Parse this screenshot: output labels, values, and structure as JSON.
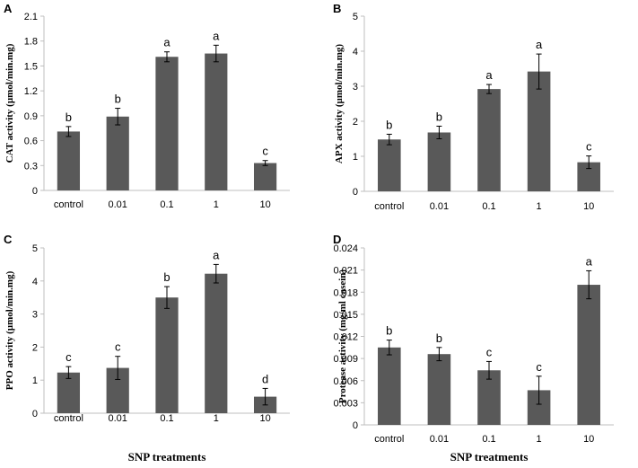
{
  "chart_data": [
    {
      "type": "bar",
      "panel": "A",
      "categories": [
        "control",
        "0.01",
        "0.1",
        "1",
        "10"
      ],
      "values": [
        0.71,
        0.89,
        1.61,
        1.65,
        0.33
      ],
      "errors": [
        0.06,
        0.1,
        0.06,
        0.1,
        0.03
      ],
      "letters": [
        "b",
        "b",
        "a",
        "a",
        "c"
      ],
      "ylabel": "CAT activity (µmol/min.mg)",
      "xlabel": "",
      "ylim": [
        0,
        2.1
      ],
      "yticks": [
        "0",
        "0.3",
        "0.6",
        "0.9",
        "1.2",
        "1.5",
        "1.8",
        "2.1"
      ],
      "grid": false
    },
    {
      "type": "bar",
      "panel": "B",
      "categories": [
        "control",
        "0.01",
        "0.1",
        "1",
        "10"
      ],
      "values": [
        1.48,
        1.68,
        2.92,
        3.42,
        0.83
      ],
      "errors": [
        0.15,
        0.18,
        0.13,
        0.5,
        0.18
      ],
      "letters": [
        "b",
        "b",
        "a",
        "a",
        "c"
      ],
      "ylabel": "APX activity (µmol/min.mg)",
      "xlabel": "",
      "ylim": [
        0,
        5
      ],
      "yticks": [
        "0",
        "1",
        "2",
        "3",
        "4",
        "5"
      ],
      "grid": false
    },
    {
      "type": "bar",
      "panel": "C",
      "categories": [
        "control",
        "0.01",
        "0.1",
        "1",
        "10"
      ],
      "values": [
        1.23,
        1.37,
        3.5,
        4.22,
        0.5
      ],
      "errors": [
        0.18,
        0.35,
        0.33,
        0.28,
        0.25
      ],
      "letters": [
        "c",
        "c",
        "b",
        "a",
        "d"
      ],
      "ylabel": "PPO activity (µmol/min.mg)",
      "xlabel": "SNP treatments",
      "ylim": [
        0,
        5
      ],
      "yticks": [
        "0",
        "1",
        "2",
        "3",
        "4",
        "5"
      ],
      "grid": false
    },
    {
      "type": "bar",
      "panel": "D",
      "categories": [
        "control",
        "0.01",
        "0.1",
        "1",
        "10"
      ],
      "values": [
        0.0105,
        0.0096,
        0.0074,
        0.0047,
        0.019
      ],
      "errors": [
        0.001,
        0.0009,
        0.0012,
        0.0019,
        0.0019
      ],
      "letters": [
        "b",
        "b",
        "c",
        "c",
        "a"
      ],
      "ylabel": "Protease activity (mg/ml casein)",
      "xlabel": "SNP treatments",
      "ylim": [
        0,
        0.024
      ],
      "yticks": [
        "0",
        "0.003",
        "0.006",
        "0.009",
        "0.012",
        "0.015",
        "0.018",
        "0.021",
        "0.024"
      ],
      "grid": false
    }
  ]
}
